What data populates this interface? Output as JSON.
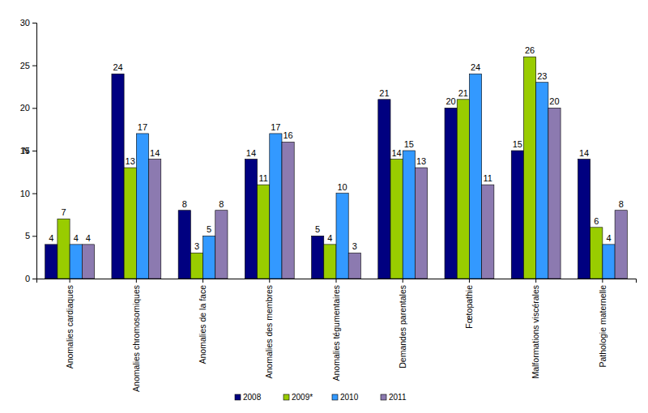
{
  "chart_data": {
    "type": "bar",
    "y_label": "N",
    "categories": [
      "Anomalies cardiaques",
      "Anomalies chromosomiques",
      "Anomalies de la face",
      "Anomalies des membres",
      "Anomalies tégumentaires",
      "Demandes parentales",
      "Fœtopathie",
      "Malformations viscérales",
      "Pathologie maternelle"
    ],
    "series": [
      {
        "name": "2008",
        "color": "#000080",
        "values": [
          4,
          24,
          8,
          14,
          5,
          21,
          20,
          15,
          14
        ]
      },
      {
        "name": "2009*",
        "color": "#99cc00",
        "values": [
          7,
          13,
          3,
          11,
          4,
          14,
          21,
          26,
          6
        ]
      },
      {
        "name": "2010",
        "color": "#3399ff",
        "values": [
          4,
          17,
          5,
          17,
          10,
          15,
          24,
          23,
          4
        ]
      },
      {
        "name": "2011",
        "color": "#8c7ab0",
        "values": [
          4,
          14,
          8,
          16,
          3,
          13,
          11,
          20,
          8
        ]
      }
    ],
    "ylim": [
      0,
      30
    ],
    "yticks": [
      0,
      5,
      10,
      15,
      20,
      25,
      30
    ],
    "grid": false,
    "data_labels": true,
    "legend": "bottom"
  }
}
